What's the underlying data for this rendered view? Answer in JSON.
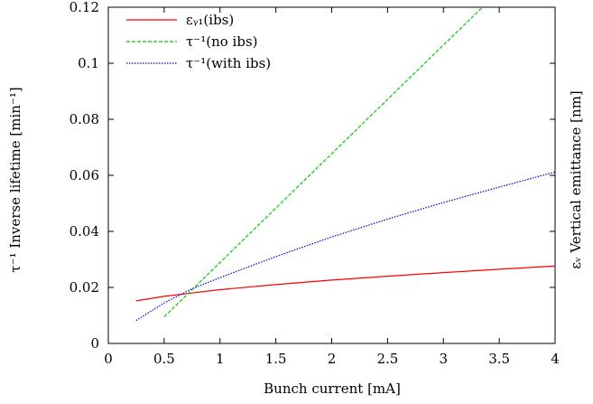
{
  "chart_data": {
    "type": "line",
    "xlabel": "Bunch current [mA]",
    "ylabel": "τ⁻¹ Inverse lifetime [min⁻¹]",
    "y2label": "εᵥ Vertical emittance [nm]",
    "xlim": [
      0,
      4
    ],
    "ylim": [
      0,
      0.12
    ],
    "xticks": [
      0,
      0.5,
      1,
      1.5,
      2,
      2.5,
      3,
      3.5,
      4
    ],
    "xtick_labels": [
      "0",
      "0.5",
      "1",
      "1.5",
      "2",
      "2.5",
      "3",
      "3.5",
      "4"
    ],
    "yticks": [
      0,
      0.02,
      0.04,
      0.06,
      0.08,
      0.1,
      0.12
    ],
    "ytick_labels": [
      "0",
      "0.02",
      "0.04",
      "0.06",
      "0.08",
      "0.1",
      "0.12"
    ],
    "grid": false,
    "legend_position": "top-left",
    "series": [
      {
        "name": "εᵧ₁(ibs)",
        "color": "#ff0000",
        "style": "solid",
        "x": [
          0.25,
          0.5,
          0.75,
          1.0,
          1.5,
          2.0,
          2.5,
          3.0,
          3.5,
          4.0
        ],
        "y": [
          0.0152,
          0.0168,
          0.018,
          0.0192,
          0.021,
          0.0226,
          0.024,
          0.0253,
          0.0265,
          0.0276
        ]
      },
      {
        "name": "τ⁻¹(no ibs)",
        "color": "#00cc00",
        "style": "dashed",
        "x": [
          0.5,
          1.0,
          1.5,
          2.0,
          2.5,
          3.0,
          3.35
        ],
        "y": [
          0.0095,
          0.0289,
          0.0483,
          0.0677,
          0.0871,
          0.1065,
          0.12
        ]
      },
      {
        "name": "τ⁻¹(with ibs)",
        "color": "#0000cc",
        "style": "dotted",
        "x": [
          0.25,
          0.5,
          0.75,
          1.0,
          1.5,
          2.0,
          2.5,
          3.0,
          3.5,
          4.0
        ],
        "y": [
          0.0082,
          0.0145,
          0.0195,
          0.0235,
          0.031,
          0.038,
          0.0444,
          0.0503,
          0.0558,
          0.0612
        ]
      }
    ]
  }
}
